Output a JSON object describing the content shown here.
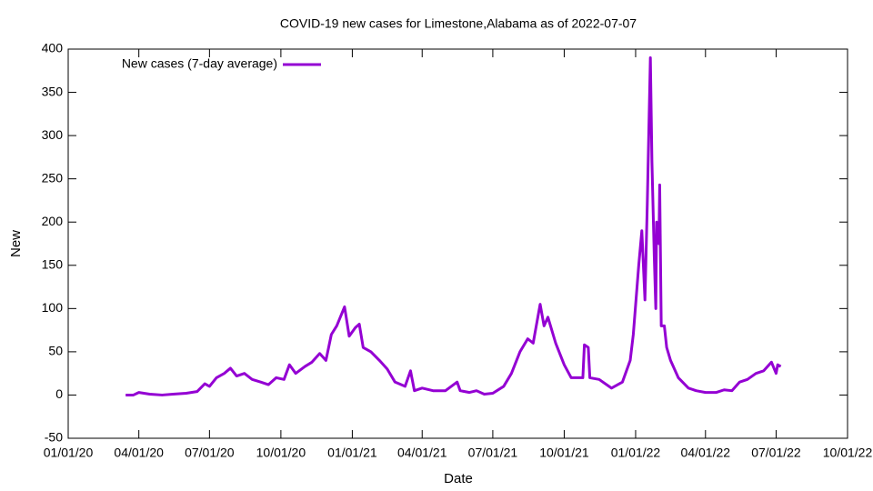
{
  "chart_data": {
    "type": "line",
    "title": "COVID-19 new cases for Limestone,Alabama as of 2022-07-07",
    "xlabel": "Date",
    "ylabel": "New",
    "legend": "top-left",
    "xlim": [
      "2020-01-01",
      "2022-10-01"
    ],
    "xticks": [
      {
        "value": "2020-01-01",
        "label": "01/01/20"
      },
      {
        "value": "2020-04-01",
        "label": "04/01/20"
      },
      {
        "value": "2020-07-01",
        "label": "07/01/20"
      },
      {
        "value": "2020-10-01",
        "label": "10/01/20"
      },
      {
        "value": "2021-01-01",
        "label": "01/01/21"
      },
      {
        "value": "2021-04-01",
        "label": "04/01/21"
      },
      {
        "value": "2021-07-01",
        "label": "07/01/21"
      },
      {
        "value": "2021-10-01",
        "label": "10/01/21"
      },
      {
        "value": "2022-01-01",
        "label": "01/01/22"
      },
      {
        "value": "2022-04-01",
        "label": "04/01/22"
      },
      {
        "value": "2022-07-01",
        "label": "07/01/22"
      },
      {
        "value": "2022-10-01",
        "label": "10/01/22"
      }
    ],
    "ylim": [
      -50,
      400
    ],
    "yticks": [
      -50,
      0,
      50,
      100,
      150,
      200,
      250,
      300,
      350,
      400
    ],
    "grid": false,
    "x": [
      "2020-03-15",
      "2020-03-25",
      "2020-04-01",
      "2020-04-15",
      "2020-05-01",
      "2020-05-15",
      "2020-06-01",
      "2020-06-15",
      "2020-06-25",
      "2020-07-01",
      "2020-07-10",
      "2020-07-20",
      "2020-07-28",
      "2020-08-05",
      "2020-08-15",
      "2020-08-25",
      "2020-09-05",
      "2020-09-15",
      "2020-09-25",
      "2020-10-05",
      "2020-10-12",
      "2020-10-20",
      "2020-11-01",
      "2020-11-10",
      "2020-11-20",
      "2020-11-28",
      "2020-12-05",
      "2020-12-12",
      "2020-12-22",
      "2020-12-28",
      "2021-01-05",
      "2021-01-10",
      "2021-01-15",
      "2021-01-25",
      "2021-02-05",
      "2021-02-15",
      "2021-02-25",
      "2021-03-10",
      "2021-03-17",
      "2021-03-22",
      "2021-04-01",
      "2021-04-15",
      "2021-05-01",
      "2021-05-16",
      "2021-05-20",
      "2021-06-01",
      "2021-06-10",
      "2021-06-20",
      "2021-07-01",
      "2021-07-15",
      "2021-07-25",
      "2021-08-05",
      "2021-08-15",
      "2021-08-22",
      "2021-08-31",
      "2021-09-05",
      "2021-09-10",
      "2021-09-20",
      "2021-10-01",
      "2021-10-10",
      "2021-10-25",
      "2021-10-27",
      "2021-11-01",
      "2021-11-03",
      "2021-11-15",
      "2021-12-01",
      "2021-12-15",
      "2021-12-25",
      "2021-12-29",
      "2022-01-05",
      "2022-01-09",
      "2022-01-13",
      "2022-01-16",
      "2022-01-20",
      "2022-01-22",
      "2022-01-25",
      "2022-01-27",
      "2022-01-28",
      "2022-01-31",
      "2022-02-01",
      "2022-02-03",
      "2022-02-07",
      "2022-02-10",
      "2022-02-15",
      "2022-02-25",
      "2022-03-10",
      "2022-03-20",
      "2022-04-01",
      "2022-04-15",
      "2022-04-25",
      "2022-05-05",
      "2022-05-15",
      "2022-05-25",
      "2022-06-05",
      "2022-06-15",
      "2022-06-25",
      "2022-07-01",
      "2022-07-03",
      "2022-07-07"
    ],
    "series": [
      {
        "name": "New cases (7-day average)",
        "color": "#9400d3",
        "values": [
          0,
          0,
          3,
          1,
          0,
          1,
          2,
          4,
          13,
          10,
          20,
          25,
          31,
          22,
          25,
          18,
          15,
          12,
          20,
          18,
          35,
          25,
          33,
          38,
          48,
          40,
          70,
          80,
          102,
          68,
          78,
          82,
          55,
          50,
          40,
          30,
          15,
          10,
          28,
          5,
          8,
          5,
          5,
          15,
          5,
          3,
          5,
          1,
          2,
          10,
          25,
          50,
          65,
          60,
          105,
          80,
          90,
          60,
          35,
          20,
          20,
          58,
          55,
          20,
          18,
          8,
          15,
          40,
          70,
          150,
          190,
          110,
          220,
          390,
          270,
          160,
          100,
          200,
          175,
          243,
          80,
          80,
          55,
          40,
          20,
          8,
          5,
          3,
          3,
          6,
          5,
          15,
          18,
          25,
          28,
          38,
          25,
          35,
          33
        ]
      }
    ]
  }
}
